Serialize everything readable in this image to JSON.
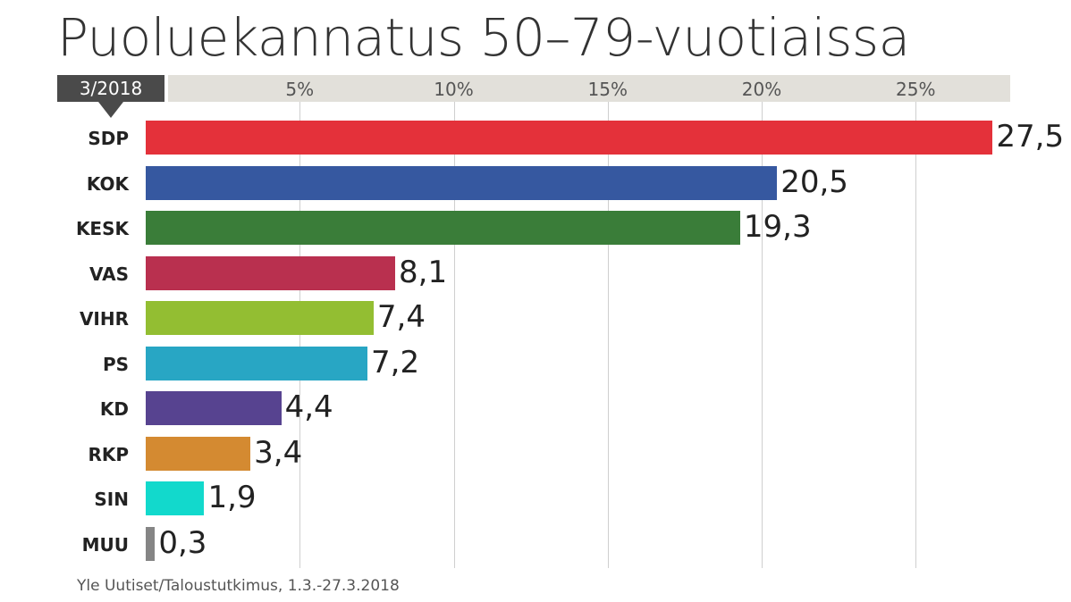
{
  "title": "Puoluekannatus 50–79-vuotiaissa",
  "period": "3/2018",
  "source": "Yle Uutiset/Taloustutkimus, 1.3.-27.3.2018",
  "chart_data": {
    "type": "bar",
    "orientation": "horizontal",
    "categories": [
      "SDP",
      "KOK",
      "KESK",
      "VAS",
      "VIHR",
      "PS",
      "KD",
      "RKP",
      "SIN",
      "MUU"
    ],
    "values": [
      27.5,
      20.5,
      19.3,
      8.1,
      7.4,
      7.2,
      4.4,
      3.4,
      1.9,
      0.3
    ],
    "value_labels": [
      "27,5",
      "20,5",
      "19,3",
      "8,1",
      "7,4",
      "7,2",
      "4,4",
      "3,4",
      "1,9",
      "0,3"
    ],
    "colors": [
      "#e4313a",
      "#3658a0",
      "#3a7d39",
      "#b9304f",
      "#93be32",
      "#28a6c4",
      "#574390",
      "#d48a31",
      "#12d9cc",
      "#858585"
    ],
    "xticks": [
      5,
      10,
      15,
      20,
      25
    ],
    "xtick_labels": [
      "5%",
      "10%",
      "15%",
      "20%",
      "25%"
    ],
    "xlim": [
      0,
      28.2
    ],
    "grid": true
  }
}
